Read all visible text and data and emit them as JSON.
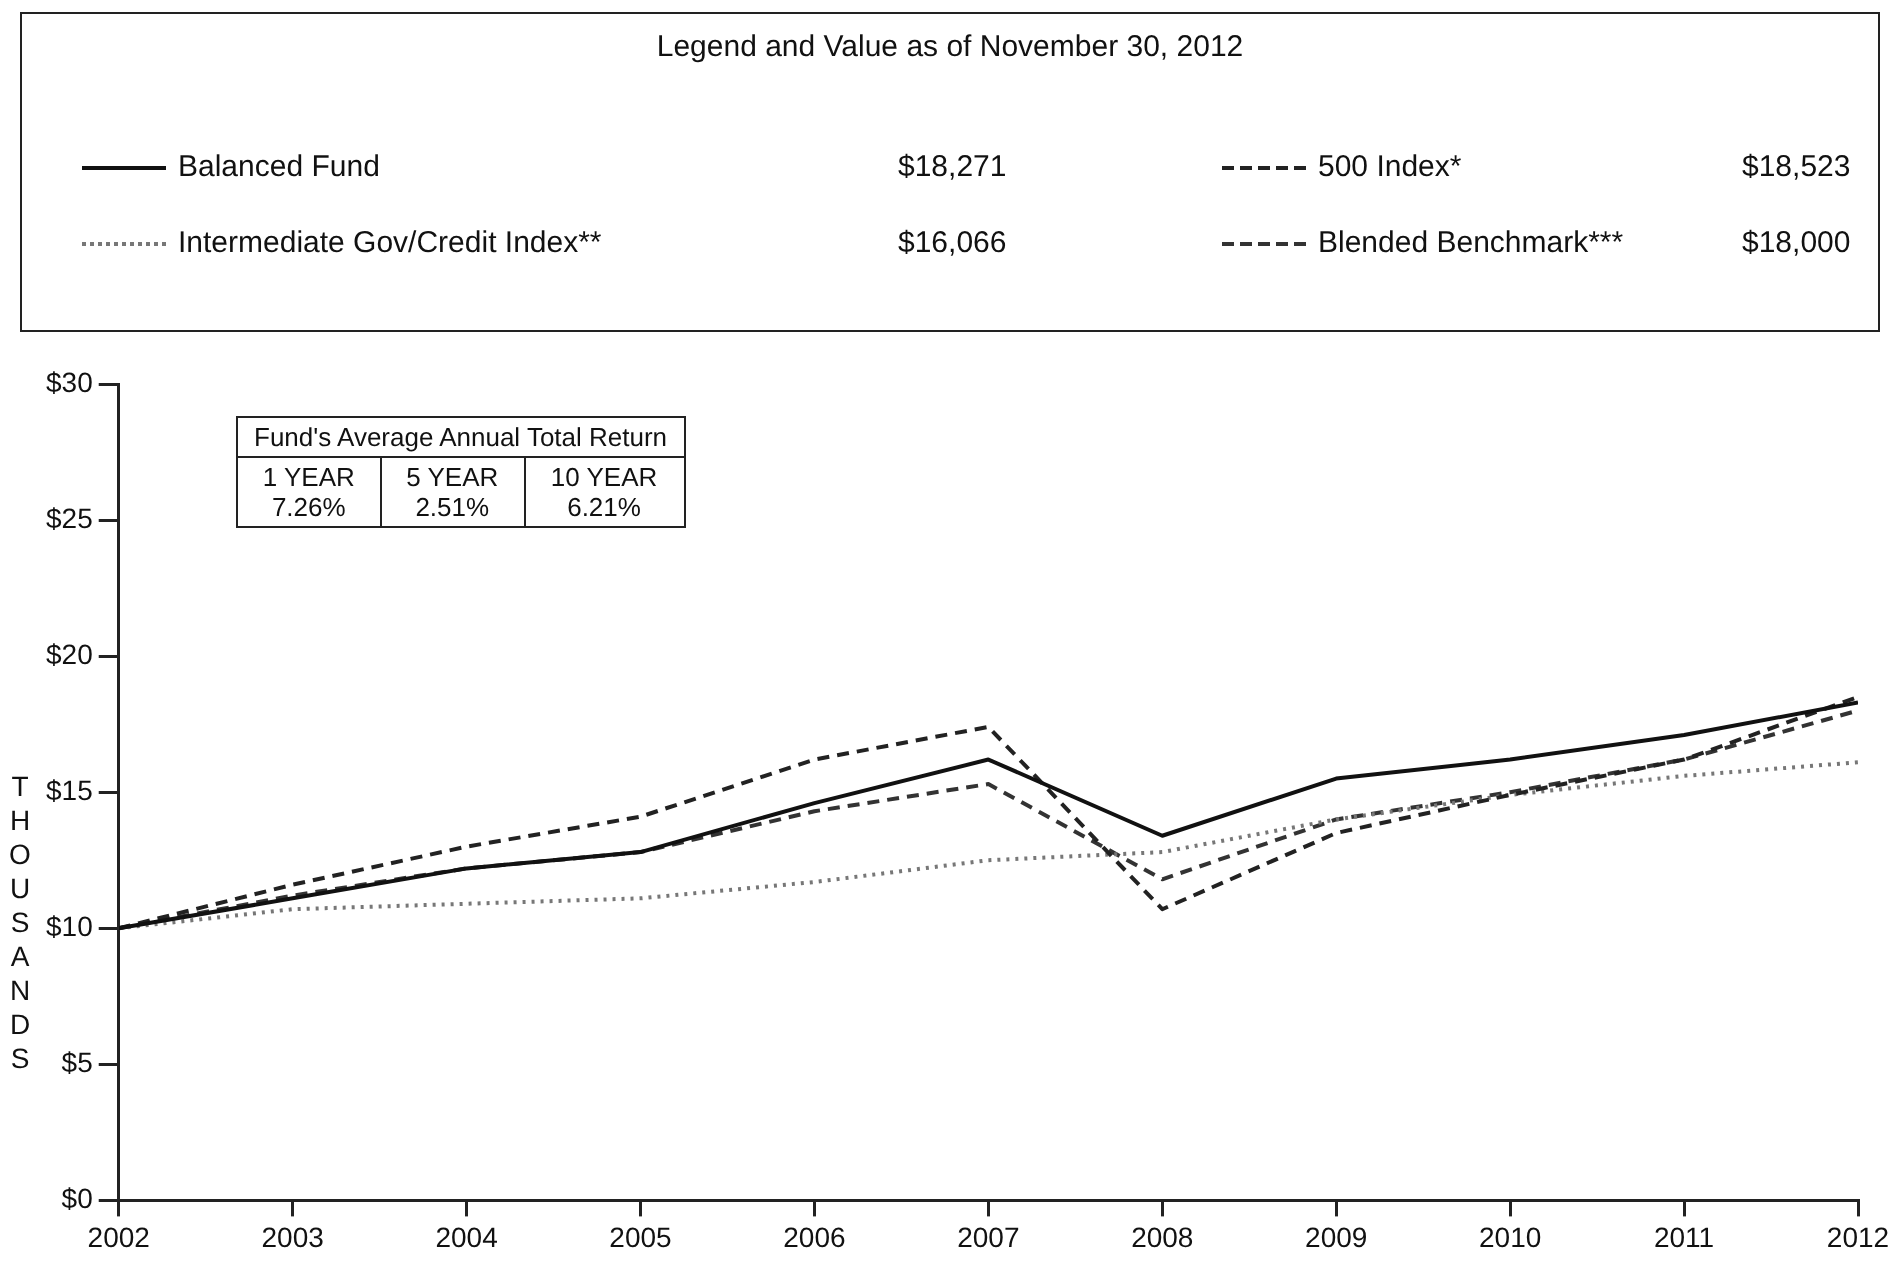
{
  "chart_data": {
    "type": "line",
    "legend_title": "Legend and Value as of November 30, 2012",
    "ylabel": "THOUSANDS",
    "legend": "top",
    "marker": "none",
    "x": [
      2002,
      2003,
      2004,
      2005,
      2006,
      2007,
      2008,
      2009,
      2010,
      2011,
      2012
    ],
    "xlim": [
      2002,
      2012
    ],
    "xticks": [
      2002,
      2003,
      2004,
      2005,
      2006,
      2007,
      2008,
      2009,
      2010,
      2011,
      2012
    ],
    "ylim": [
      0,
      30
    ],
    "yticks": [
      {
        "value": 0,
        "label": "$0"
      },
      {
        "value": 5,
        "label": "$5"
      },
      {
        "value": 10,
        "label": "$10"
      },
      {
        "value": 15,
        "label": "$15"
      },
      {
        "value": 20,
        "label": "$20"
      },
      {
        "value": 25,
        "label": "$25"
      },
      {
        "value": 30,
        "label": "$30"
      }
    ],
    "grid": false,
    "series": [
      {
        "name": "Balanced Fund",
        "color": "#111111",
        "line_style": "solid",
        "values": [
          10,
          11.1,
          12.2,
          12.8,
          14.6,
          16.2,
          13.4,
          15.5,
          16.2,
          17.1,
          18.3
        ]
      },
      {
        "name": "500 Index*",
        "color": "#222222",
        "line_style": "dashed",
        "values": [
          10,
          11.6,
          13.0,
          14.1,
          16.2,
          17.4,
          10.7,
          13.5,
          14.9,
          16.2,
          18.5
        ]
      },
      {
        "name": "Intermediate Gov/Credit Index**",
        "color": "#777777",
        "line_style": "dotted",
        "values": [
          10,
          10.7,
          10.9,
          11.1,
          11.7,
          12.5,
          12.8,
          14.0,
          14.9,
          15.6,
          16.1
        ]
      },
      {
        "name": "Blended Benchmark***",
        "color": "#333333",
        "line_style": "dashed",
        "values": [
          10,
          11.2,
          12.2,
          12.8,
          14.3,
          15.3,
          11.8,
          14.0,
          15.0,
          16.2,
          18.0
        ]
      }
    ],
    "annotations": [
      "$18,271",
      "$18,523",
      "$16,066",
      "$18,000",
      "Fund's Average Annual Total Return",
      "1 YEAR",
      "5 YEAR",
      "10 YEAR",
      "7.26%",
      "2.51%",
      "6.21%"
    ]
  }
}
